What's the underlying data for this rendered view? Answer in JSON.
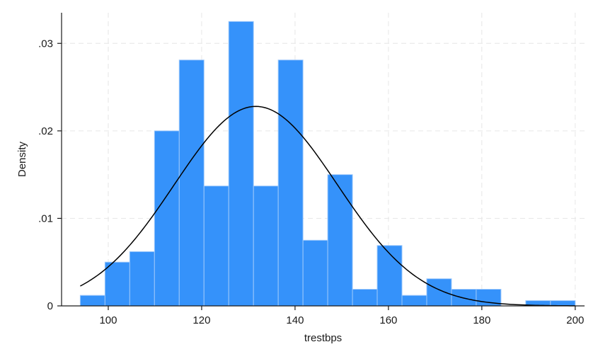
{
  "chart_data": {
    "type": "bar",
    "subtype": "histogram_with_normal_density",
    "title": "",
    "xlabel": "trestbps",
    "ylabel": "Density",
    "xlim": [
      90,
      202
    ],
    "ylim": [
      0,
      0.0335
    ],
    "x_ticks": [
      100,
      120,
      140,
      160,
      180,
      200
    ],
    "x_tick_labels": [
      "100",
      "120",
      "140",
      "160",
      "180",
      "200"
    ],
    "y_ticks": [
      0,
      0.01,
      0.02,
      0.03
    ],
    "y_tick_labels": [
      "0",
      ".01",
      ".02",
      ".03"
    ],
    "grid": true,
    "bar_color": "#3592fa",
    "bar_edge_color": "#9cc8fb",
    "curve_color": "#000000",
    "bins": [
      {
        "start": 94.0,
        "end": 99.3,
        "density": 0.0012
      },
      {
        "start": 99.3,
        "end": 104.6,
        "density": 0.005
      },
      {
        "start": 104.6,
        "end": 109.9,
        "density": 0.0062
      },
      {
        "start": 109.9,
        "end": 115.2,
        "density": 0.02
      },
      {
        "start": 115.2,
        "end": 120.5,
        "density": 0.0281
      },
      {
        "start": 120.5,
        "end": 125.8,
        "density": 0.0137
      },
      {
        "start": 125.8,
        "end": 131.1,
        "density": 0.0325
      },
      {
        "start": 131.1,
        "end": 136.4,
        "density": 0.0137
      },
      {
        "start": 136.4,
        "end": 141.7,
        "density": 0.0281
      },
      {
        "start": 141.7,
        "end": 147.0,
        "density": 0.0075
      },
      {
        "start": 147.0,
        "end": 152.3,
        "density": 0.015
      },
      {
        "start": 152.3,
        "end": 157.6,
        "density": 0.0019
      },
      {
        "start": 157.6,
        "end": 162.9,
        "density": 0.0069
      },
      {
        "start": 162.9,
        "end": 168.2,
        "density": 0.0012
      },
      {
        "start": 168.2,
        "end": 173.5,
        "density": 0.0031
      },
      {
        "start": 173.5,
        "end": 178.8,
        "density": 0.0019
      },
      {
        "start": 178.8,
        "end": 184.1,
        "density": 0.0019
      },
      {
        "start": 184.1,
        "end": 189.4,
        "density": 0.0
      },
      {
        "start": 189.4,
        "end": 194.7,
        "density": 0.0006
      },
      {
        "start": 194.7,
        "end": 200.0,
        "density": 0.0006
      }
    ],
    "normal_curve": {
      "mean": 131.6,
      "sd": 17.5,
      "x_range": [
        94,
        200
      ]
    }
  }
}
